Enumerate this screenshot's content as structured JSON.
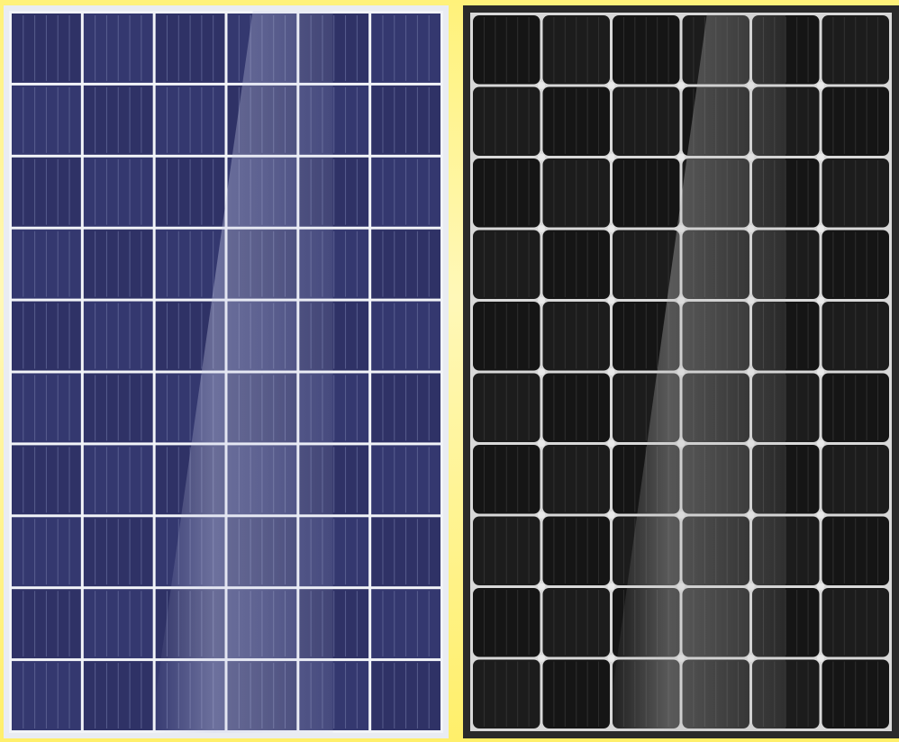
{
  "scene": {
    "description_free": true,
    "background_color": "#fff47e"
  },
  "panels": [
    {
      "id": "polycrystalline",
      "cell_columns": 6,
      "cell_rows": 10,
      "frame_color": "#e9ecf2",
      "cell_color": "#2f3266",
      "cell_color_alt": "#34386f",
      "finger_color": "#6a6f9e",
      "grid_color": "#f2f4f8",
      "highlight_color": "#c9cde8",
      "rounded_cells": false,
      "corner_dots": false
    },
    {
      "id": "monocrystalline",
      "cell_columns": 6,
      "cell_rows": 10,
      "frame_color": "#2a2a2a",
      "cell_color": "#151515",
      "cell_color_alt": "#1c1c1c",
      "finger_color": "#3a3a3a",
      "grid_color": "#d8d8d8",
      "highlight_color": "#bfbfbf",
      "rounded_cells": true,
      "corner_dots": true
    }
  ]
}
